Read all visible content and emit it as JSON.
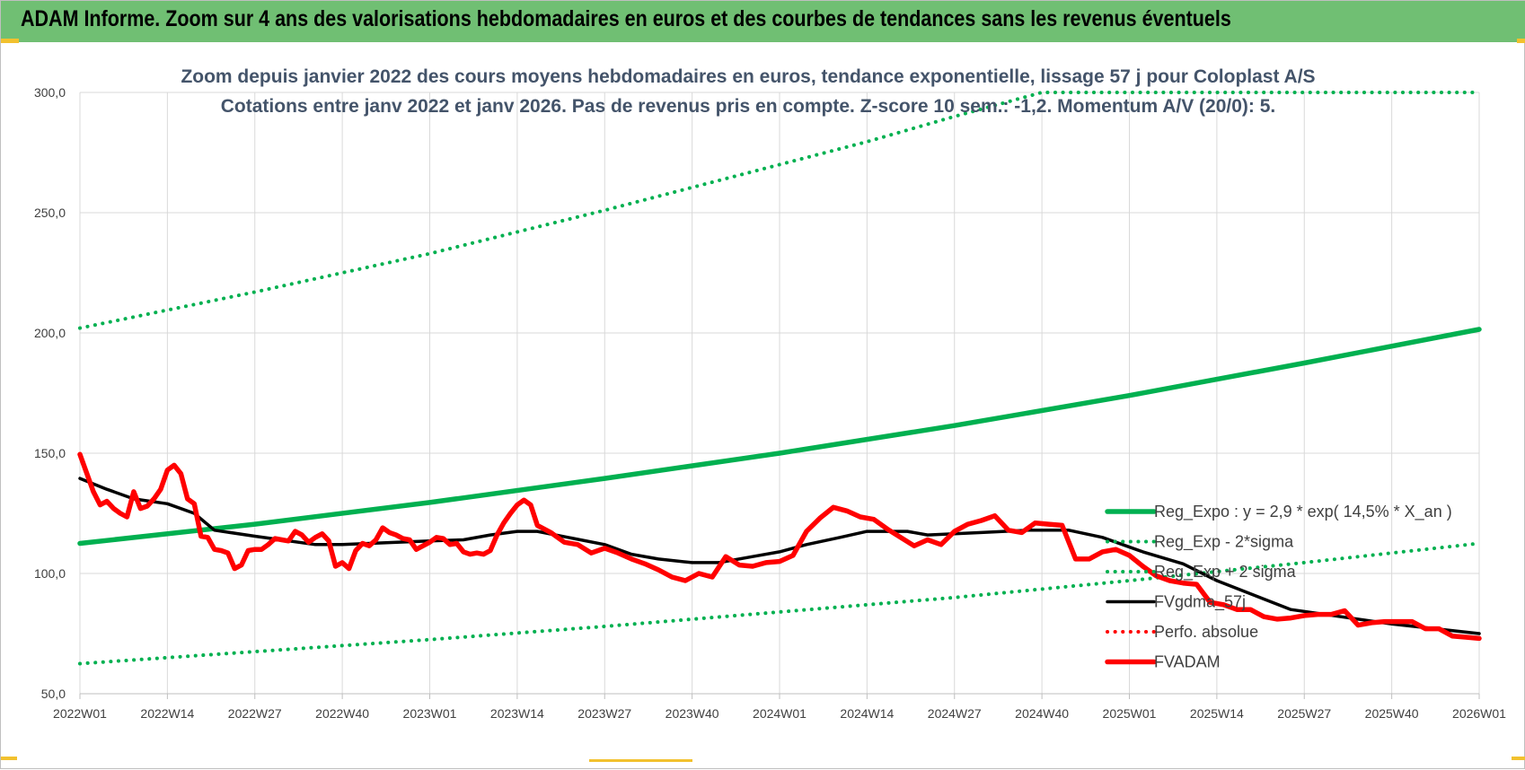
{
  "header": {
    "title": "ADAM Informe. Zoom sur 4 ans des valorisations hebdomadaires en euros et des courbes de tendances sans les revenus éventuels"
  },
  "colors": {
    "title_bar": "#70bf73",
    "reg_expo": "#00b050",
    "price": "#ff0000",
    "ma": "#000000",
    "subtitle": "#44546a"
  },
  "chart_data": {
    "type": "line",
    "title_line1": "Zoom depuis janvier 2022 des cours moyens hebdomadaires en euros, tendance exponentielle, lissage 57 j pour Coloplast A/S",
    "title_line2": "Cotations entre janv 2022 et janv 2026. Pas de revenus pris en compte. Z-score 10 sem.: -1,2. Momentum A/V (20/0): 5.",
    "ylim": [
      50,
      300
    ],
    "yticks": [
      50,
      100,
      150,
      200,
      250,
      300
    ],
    "ytick_labels": [
      "50,0",
      "100,0",
      "150,0",
      "200,0",
      "250,0",
      "300,0"
    ],
    "xlim": [
      0,
      208
    ],
    "xticks": [
      0,
      13,
      26,
      39,
      52,
      65,
      78,
      91,
      104,
      117,
      130,
      143,
      156,
      169,
      182,
      195,
      208
    ],
    "xtick_labels": [
      "2022W01",
      "2022W14",
      "2022W27",
      "2022W40",
      "2023W01",
      "2023W14",
      "2023W27",
      "2023W40",
      "2024W01",
      "2024W14",
      "2024W27",
      "2024W40",
      "2025W01",
      "2025W14",
      "2025W27",
      "2025W40",
      "2026W01"
    ],
    "series": [
      {
        "name": "Reg_Expo : y = 2,9 * exp( 14,5% * X_an )",
        "style": "solid-thick",
        "color": "#00b050",
        "x": [
          0,
          26,
          52,
          78,
          104,
          130,
          156,
          182,
          208
        ],
        "values": [
          112.5,
          120.5,
          129.5,
          139.5,
          150,
          161.5,
          174,
          187.5,
          201.5
        ]
      },
      {
        "name": "Reg_Exp - 2*sigma",
        "style": "dotted",
        "color": "#00b050",
        "x": [
          0,
          26,
          52,
          78,
          104,
          130,
          156,
          182,
          208
        ],
        "values": [
          62.5,
          67.5,
          72.5,
          78,
          84,
          90,
          97,
          104.5,
          112.5
        ]
      },
      {
        "name": "Reg_Exp + 2 sigma",
        "style": "dotted",
        "color": "#00b050",
        "x": [
          0,
          26,
          52,
          78,
          104,
          117,
          130,
          143,
          156,
          169,
          182,
          195,
          208
        ],
        "values": [
          202,
          217,
          233,
          251,
          270,
          279.5,
          290,
          300,
          300,
          300,
          300,
          300,
          300
        ]
      },
      {
        "name": "FVgdma_57j",
        "style": "solid",
        "color": "#000000",
        "x": [
          0,
          4,
          8,
          13,
          17,
          20,
          26,
          35,
          39,
          52,
          57,
          61,
          65,
          68,
          78,
          82,
          86,
          91,
          95,
          100,
          104,
          108,
          113,
          117,
          123,
          126,
          134,
          141,
          147,
          152,
          158,
          164,
          169,
          180,
          195,
          208
        ],
        "values": [
          139.5,
          135,
          131,
          129,
          125,
          118,
          115.5,
          112,
          112,
          113.5,
          114,
          116,
          117.5,
          117.5,
          112,
          108,
          106,
          104.5,
          104.5,
          107,
          109,
          112,
          115,
          117.5,
          117.5,
          116,
          117,
          118,
          118,
          115,
          109,
          104,
          97,
          85,
          79,
          75
        ]
      },
      {
        "name": "Perfo. absolue",
        "style": "dotted",
        "color": "#ff0000",
        "x": [],
        "values": []
      },
      {
        "name": "FVADAM",
        "style": "solid-thick",
        "color": "#ff0000",
        "x": [
          0,
          2,
          3,
          4,
          5,
          6,
          7,
          8,
          9,
          10,
          11,
          12,
          13,
          14,
          15,
          16,
          17,
          18,
          19,
          20,
          21,
          22,
          23,
          24,
          25,
          26,
          27,
          28,
          29,
          30,
          31,
          32,
          33,
          34,
          35,
          36,
          37,
          38,
          39,
          40,
          41,
          42,
          43,
          44,
          45,
          46,
          47,
          48,
          49,
          50,
          52,
          53,
          54,
          55,
          56,
          57,
          58,
          59,
          60,
          61,
          62,
          63,
          64,
          65,
          66,
          67,
          68,
          70,
          72,
          74,
          76,
          78,
          80,
          82,
          84,
          86,
          88,
          90,
          92,
          94,
          96,
          98,
          100,
          102,
          104,
          106,
          108,
          110,
          112,
          114,
          116,
          118,
          120,
          122,
          124,
          126,
          128,
          130,
          132,
          134,
          136,
          138,
          140,
          142,
          144,
          146,
          148,
          150,
          152,
          154,
          156,
          158,
          160,
          162,
          164,
          166,
          168,
          170,
          172,
          174,
          176,
          178,
          180,
          182,
          184,
          186,
          188,
          190,
          192,
          194,
          196,
          198,
          200,
          202,
          204,
          206,
          208
        ],
        "values": [
          149.5,
          134,
          128.5,
          130,
          127,
          125,
          123.5,
          134,
          127,
          128,
          131,
          135,
          143,
          145,
          141.5,
          131,
          129,
          115.5,
          115,
          110,
          109.5,
          108.5,
          102,
          103.5,
          109.5,
          110,
          110,
          112,
          114.5,
          114,
          113.5,
          117.5,
          116,
          113,
          115,
          116.5,
          113.5,
          103,
          104.5,
          102,
          109.5,
          112.5,
          111.5,
          114,
          119,
          117,
          116,
          114.5,
          114,
          110,
          113,
          115,
          114.5,
          112,
          112.5,
          109,
          108,
          108.5,
          108,
          109.5,
          116,
          121,
          125,
          128.5,
          130.5,
          128.5,
          120,
          117,
          113,
          112,
          108.5,
          110.5,
          108.5,
          106,
          104,
          101.5,
          98.5,
          97,
          100,
          98.5,
          107,
          103.5,
          103,
          104.5,
          105,
          107.5,
          117.5,
          123,
          127.5,
          126,
          123.5,
          122.5,
          118.5,
          115,
          111.5,
          114,
          112,
          117.5,
          120.5,
          122,
          124,
          118,
          117,
          121,
          120.5,
          120,
          106,
          106,
          109,
          110,
          107.5,
          103,
          99,
          97,
          96,
          95.5,
          88,
          87,
          85,
          85,
          82,
          81,
          81.5,
          82.5,
          83,
          83,
          84.5,
          78.5,
          79.5,
          80,
          80,
          80,
          77,
          77,
          74,
          73.5,
          73
        ]
      }
    ],
    "legend_position": "bottom-right",
    "grid": true
  }
}
